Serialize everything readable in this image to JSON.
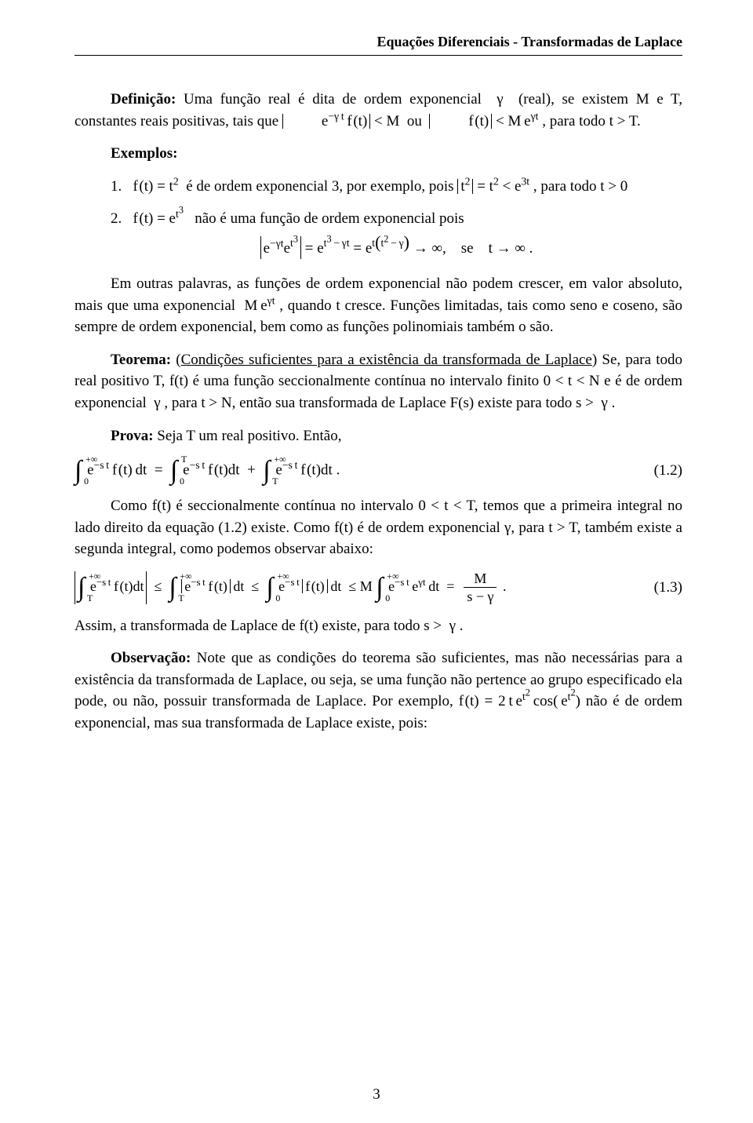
{
  "colors": {
    "text": "#000000",
    "background": "#ffffff",
    "rule": "#000000"
  },
  "typography": {
    "family": "Times New Roman",
    "body_size_pt": 14,
    "header_size_pt": 13,
    "header_weight": "bold"
  },
  "header": {
    "running_title": "Equações Diferenciais  -  Transformadas de Laplace"
  },
  "body": {
    "p1_a": "Definição:",
    "p1_b": " Uma função real é dita de ordem exponencial  γ  (real), se existem M e T, constantes reais positivas, tais que ",
    "p1_eq": "|e^{−γt} f(t)| < M  ou  |f(t)| < M e^{γt}",
    "p1_c": " , para todo t > T.",
    "ex_label": "Exemplos:",
    "item1_a": "1.   f(t) = t²  é de ordem exponencial 3, por exemplo, pois ",
    "item1_eq": "|t²| = t² < e^{3t}",
    "item1_b": " , para todo t > 0",
    "item2_a": "2.   f(t) = e^{t³}   não é uma função de ordem exponencial pois",
    "item2_eq": "|e^{−γt} e^{t³}| = e^{t³ − γt} = e^{t(t² − γ)} → ∞,   se   t → ∞ .",
    "p3": "Em outras palavras, as funções de ordem exponencial não podem crescer, em valor absoluto, mais que uma exponencial  M e^{γt} , quando t cresce. Funções limitadas, tais como seno e coseno, são sempre de ordem exponencial, bem como as funções polinomiais também o são.",
    "p4_label": "Teorema:",
    "p4_link": "Condições suficientes para a existência da transformada de Laplace",
    "p4_rest": " Se, para todo real positivo T, f(t) é uma função seccionalmente contínua no intervalo finito 0 < t < N e é de ordem exponencial  γ , para t > N, então sua transformada de Laplace F(s) existe para todo s >  γ .",
    "p5_label": "Prova:",
    "p5_rest": " Seja T um real positivo. Então,",
    "eq12": "∫₀^{+∞} e^{−st} f(t) dt = ∫₀^{T} e^{−st} f(t) dt + ∫_T^{+∞} e^{−st} f(t) dt .",
    "eq12_tag": "(1.2)",
    "p6": "Como f(t) é seccionalmente contínua no intervalo 0 < t < T, temos que a primeira integral no lado direito da equação (1.2) existe. Como f(t) é de ordem exponencial γ, para t > T, também existe a segunda integral, como podemos observar abaixo:",
    "eq13": "|∫_T^{+∞} e^{−st} f(t) dt| ≤ ∫_T^{+∞} |e^{−st} f(t)| dt ≤ ∫₀^{+∞} e^{−st} |f(t)| dt ≤ M ∫₀^{+∞} e^{−st} e^{γt} dt = M / (s − γ) .",
    "eq13_tag": "(1.3)",
    "p7": "Assim, a transformada de Laplace de f(t) existe, para todo s >  γ .",
    "p8_label": "Observação:",
    "p8_a": " Note que as condições do teorema são suficientes, mas não necessárias para a existência da transformada de Laplace, ou seja, se uma função não pertence ao grupo especificado ela pode, ou não, possuir transformada de Laplace. Por exemplo, ",
    "p8_eq": "f(t) = 2t e^{t²} cos(e^{t²})",
    "p8_b": " não é de ordem exponencial, mas sua transformada de Laplace existe, pois:",
    "page_number": "3"
  }
}
